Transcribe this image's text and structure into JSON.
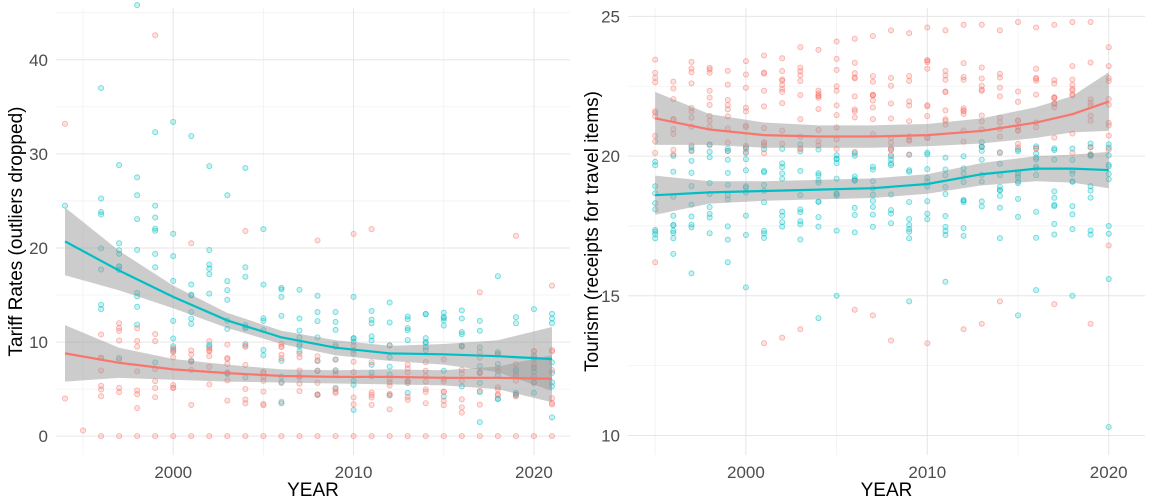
{
  "colors": {
    "group_a": "#F8766D",
    "group_b": "#00BFC4",
    "band": "#999999"
  },
  "chart_data": [
    {
      "type": "scatter",
      "xlabel": "YEAR",
      "ylabel": "Tariff Rates (outliers dropped)",
      "xlim": [
        1993.5,
        2022
      ],
      "ylim": [
        -2,
        45.5
      ],
      "xticks": [
        2000,
        2010,
        2020
      ],
      "yticks": [
        0,
        10,
        20,
        30,
        40
      ],
      "grid": true,
      "legend": "none",
      "smooth": [
        {
          "color": "group_b",
          "x": [
            1994,
            1997,
            2000,
            2003,
            2006,
            2009,
            2012,
            2015,
            2018,
            2021
          ],
          "y": [
            20.7,
            17.6,
            14.8,
            12.3,
            10.5,
            9.4,
            8.8,
            8.7,
            8.5,
            8.2
          ],
          "lower": [
            17.1,
            15.5,
            13.6,
            11.5,
            9.8,
            8.6,
            8.0,
            7.6,
            6.8,
            4.8
          ],
          "upper": [
            24.3,
            19.7,
            16.0,
            13.1,
            11.2,
            10.2,
            9.6,
            9.8,
            10.2,
            11.6
          ]
        },
        {
          "color": "group_a",
          "x": [
            1994,
            1997,
            2000,
            2003,
            2006,
            2009,
            2012,
            2015,
            2018,
            2021
          ],
          "y": [
            8.8,
            7.8,
            7.1,
            6.7,
            6.4,
            6.3,
            6.3,
            6.2,
            6.2,
            6.1
          ],
          "lower": [
            5.8,
            6.2,
            6.0,
            5.8,
            5.7,
            5.6,
            5.5,
            5.4,
            5.0,
            3.6
          ],
          "upper": [
            11.8,
            9.4,
            8.2,
            7.6,
            7.1,
            7.0,
            7.1,
            7.0,
            7.4,
            8.6
          ]
        }
      ],
      "points": [
        {
          "color": "group_a",
          "x": 1994,
          "y": 33.2
        },
        {
          "color": "group_b",
          "x": 1994,
          "y": 24.5
        },
        {
          "color": "group_b",
          "x": 1996,
          "y": 37.0
        },
        {
          "color": "group_b",
          "x": 1997,
          "y": 28.8
        },
        {
          "color": "group_b",
          "x": 1998,
          "y": 45.8
        },
        {
          "color": "group_a",
          "x": 1999,
          "y": 42.6
        },
        {
          "color": "group_b",
          "x": 1999,
          "y": 32.3
        },
        {
          "color": "group_b",
          "x": 2000,
          "y": 33.4
        },
        {
          "color": "group_b",
          "x": 2001,
          "y": 31.9
        },
        {
          "color": "group_b",
          "x": 2002,
          "y": 28.7
        },
        {
          "color": "group_b",
          "x": 2003,
          "y": 25.6
        },
        {
          "color": "group_b",
          "x": 2004,
          "y": 28.5
        },
        {
          "color": "group_b",
          "x": 1998,
          "y": 27.5
        },
        {
          "color": "group_b",
          "x": 1999,
          "y": 24.5
        },
        {
          "color": "group_a",
          "x": 1994,
          "y": 4.0
        },
        {
          "color": "group_a",
          "x": 1995,
          "y": 0.6
        },
        {
          "color": "group_a",
          "x": 1996,
          "y": 10.8
        },
        {
          "color": "group_b",
          "x": 1996,
          "y": 13.5
        },
        {
          "color": "group_b",
          "x": 1997,
          "y": 20.5
        },
        {
          "color": "group_a",
          "x": 1997,
          "y": 12.0
        },
        {
          "color": "group_b",
          "x": 1998,
          "y": 19.8
        },
        {
          "color": "group_a",
          "x": 1998,
          "y": 3.0
        },
        {
          "color": "group_b",
          "x": 2000,
          "y": 16.5
        },
        {
          "color": "group_a",
          "x": 2000,
          "y": 9.0
        },
        {
          "color": "group_b",
          "x": 2001,
          "y": 13.2
        },
        {
          "color": "group_a",
          "x": 2001,
          "y": 20.5
        },
        {
          "color": "group_b",
          "x": 2002,
          "y": 17.8
        },
        {
          "color": "group_a",
          "x": 2002,
          "y": 5.5
        },
        {
          "color": "group_b",
          "x": 2003,
          "y": 14.5
        },
        {
          "color": "group_a",
          "x": 2003,
          "y": 8.2
        },
        {
          "color": "group_b",
          "x": 2004,
          "y": 11.8
        },
        {
          "color": "group_a",
          "x": 2004,
          "y": 21.8
        },
        {
          "color": "group_b",
          "x": 2005,
          "y": 22.0
        },
        {
          "color": "group_a",
          "x": 2005,
          "y": 6.3
        },
        {
          "color": "group_b",
          "x": 2006,
          "y": 14.8
        },
        {
          "color": "group_a",
          "x": 2006,
          "y": 9.5
        },
        {
          "color": "group_b",
          "x": 2007,
          "y": 12.5
        },
        {
          "color": "group_a",
          "x": 2007,
          "y": 4.8
        },
        {
          "color": "group_b",
          "x": 2008,
          "y": 10.5
        },
        {
          "color": "group_a",
          "x": 2008,
          "y": 20.8
        },
        {
          "color": "group_b",
          "x": 2009,
          "y": 13.2
        },
        {
          "color": "group_a",
          "x": 2009,
          "y": 5.0
        },
        {
          "color": "group_b",
          "x": 2010,
          "y": 14.8
        },
        {
          "color": "group_a",
          "x": 2010,
          "y": 21.5
        },
        {
          "color": "group_b",
          "x": 2011,
          "y": 12.0
        },
        {
          "color": "group_a",
          "x": 2011,
          "y": 22.0
        },
        {
          "color": "group_b",
          "x": 2012,
          "y": 14.2
        },
        {
          "color": "group_a",
          "x": 2012,
          "y": 4.5
        },
        {
          "color": "group_b",
          "x": 2013,
          "y": 11.5
        },
        {
          "color": "group_a",
          "x": 2013,
          "y": 7.2
        },
        {
          "color": "group_b",
          "x": 2014,
          "y": 13.0
        },
        {
          "color": "group_a",
          "x": 2014,
          "y": 3.5
        },
        {
          "color": "group_b",
          "x": 2015,
          "y": 12.3
        },
        {
          "color": "group_a",
          "x": 2015,
          "y": 5.8
        },
        {
          "color": "group_b",
          "x": 2016,
          "y": 12.5
        },
        {
          "color": "group_a",
          "x": 2016,
          "y": 2.5
        },
        {
          "color": "group_b",
          "x": 2017,
          "y": 11.2
        },
        {
          "color": "group_a",
          "x": 2017,
          "y": 15.3
        },
        {
          "color": "group_b",
          "x": 2018,
          "y": 17.0
        },
        {
          "color": "group_a",
          "x": 2018,
          "y": 5.2
        },
        {
          "color": "group_b",
          "x": 2019,
          "y": 12.0
        },
        {
          "color": "group_a",
          "x": 2019,
          "y": 21.3
        },
        {
          "color": "group_b",
          "x": 2020,
          "y": 13.5
        },
        {
          "color": "group_a",
          "x": 2020,
          "y": 9.0
        },
        {
          "color": "group_b",
          "x": 2021,
          "y": 13.0
        },
        {
          "color": "group_a",
          "x": 2021,
          "y": 16.0
        },
        {
          "color": "group_b",
          "x": 2021,
          "y": 2.0
        },
        {
          "color": "group_b",
          "x": 2017,
          "y": 1.5
        },
        {
          "color": "group_b",
          "x": 2010,
          "y": 2.8
        },
        {
          "color": "group_b",
          "x": 2006,
          "y": 3.5
        }
      ],
      "zero_points_years": [
        1996,
        1997,
        1998,
        1999,
        2000,
        2001,
        2002,
        2003,
        2004,
        2005,
        2006,
        2007,
        2008,
        2009,
        2010,
        2011,
        2012,
        2013,
        2014,
        2015,
        2016,
        2017,
        2018,
        2019,
        2020,
        2021
      ]
    },
    {
      "type": "scatter",
      "xlabel": "YEAR",
      "ylabel": "Tourism (receipts for travel items)",
      "xlim": [
        1993.5,
        2022
      ],
      "ylim": [
        9.3,
        25.3
      ],
      "xticks": [
        2000,
        2010,
        2020
      ],
      "yticks": [
        10,
        15,
        20,
        25
      ],
      "grid": true,
      "legend": "none",
      "smooth": [
        {
          "color": "group_a",
          "x": [
            1995,
            1998,
            2001,
            2004,
            2007,
            2010,
            2013,
            2016,
            2018,
            2020
          ],
          "y": [
            21.35,
            20.95,
            20.75,
            20.7,
            20.7,
            20.75,
            20.9,
            21.2,
            21.5,
            21.95
          ],
          "lower": [
            20.4,
            20.4,
            20.3,
            20.3,
            20.3,
            20.35,
            20.45,
            20.65,
            20.85,
            20.9
          ],
          "upper": [
            22.3,
            21.5,
            21.2,
            21.1,
            21.1,
            21.15,
            21.35,
            21.75,
            22.15,
            23.0
          ]
        },
        {
          "color": "group_b",
          "x": [
            1995,
            1998,
            2001,
            2004,
            2007,
            2010,
            2013,
            2016,
            2018,
            2020
          ],
          "y": [
            18.6,
            18.7,
            18.75,
            18.8,
            18.85,
            19.0,
            19.35,
            19.55,
            19.55,
            19.5
          ],
          "lower": [
            17.9,
            18.3,
            18.4,
            18.45,
            18.5,
            18.65,
            18.95,
            19.1,
            19.05,
            18.85
          ],
          "upper": [
            19.3,
            19.1,
            19.1,
            19.15,
            19.2,
            19.35,
            19.75,
            20.0,
            20.05,
            20.15
          ]
        }
      ],
      "points": [
        {
          "color": "group_a",
          "x": 1995,
          "y": 22.8
        },
        {
          "color": "group_a",
          "x": 1995,
          "y": 16.2
        },
        {
          "color": "group_b",
          "x": 1995,
          "y": 17.2
        },
        {
          "color": "group_b",
          "x": 1996,
          "y": 16.5
        },
        {
          "color": "group_a",
          "x": 1997,
          "y": 23.0
        },
        {
          "color": "group_b",
          "x": 1997,
          "y": 15.8
        },
        {
          "color": "group_a",
          "x": 1998,
          "y": 23.1
        },
        {
          "color": "group_b",
          "x": 1999,
          "y": 16.2
        },
        {
          "color": "group_a",
          "x": 2000,
          "y": 23.4
        },
        {
          "color": "group_b",
          "x": 2000,
          "y": 15.3
        },
        {
          "color": "group_a",
          "x": 2001,
          "y": 23.6
        },
        {
          "color": "group_a",
          "x": 2001,
          "y": 13.3
        },
        {
          "color": "group_a",
          "x": 2002,
          "y": 23.5
        },
        {
          "color": "group_a",
          "x": 2002,
          "y": 13.5
        },
        {
          "color": "group_a",
          "x": 2003,
          "y": 23.9
        },
        {
          "color": "group_a",
          "x": 2003,
          "y": 13.8
        },
        {
          "color": "group_a",
          "x": 2004,
          "y": 23.8
        },
        {
          "color": "group_b",
          "x": 2004,
          "y": 14.2
        },
        {
          "color": "group_a",
          "x": 2005,
          "y": 24.1
        },
        {
          "color": "group_b",
          "x": 2005,
          "y": 15.0
        },
        {
          "color": "group_a",
          "x": 2006,
          "y": 24.2
        },
        {
          "color": "group_a",
          "x": 2006,
          "y": 14.5
        },
        {
          "color": "group_a",
          "x": 2007,
          "y": 24.3
        },
        {
          "color": "group_a",
          "x": 2007,
          "y": 14.3
        },
        {
          "color": "group_a",
          "x": 2008,
          "y": 24.5
        },
        {
          "color": "group_a",
          "x": 2008,
          "y": 13.4
        },
        {
          "color": "group_a",
          "x": 2009,
          "y": 24.4
        },
        {
          "color": "group_b",
          "x": 2009,
          "y": 14.8
        },
        {
          "color": "group_a",
          "x": 2010,
          "y": 24.6
        },
        {
          "color": "group_a",
          "x": 2010,
          "y": 13.3
        },
        {
          "color": "group_a",
          "x": 2011,
          "y": 24.5
        },
        {
          "color": "group_b",
          "x": 2011,
          "y": 15.5
        },
        {
          "color": "group_a",
          "x": 2012,
          "y": 24.7
        },
        {
          "color": "group_a",
          "x": 2012,
          "y": 13.8
        },
        {
          "color": "group_a",
          "x": 2013,
          "y": 24.7
        },
        {
          "color": "group_a",
          "x": 2013,
          "y": 14.0
        },
        {
          "color": "group_a",
          "x": 2014,
          "y": 24.5
        },
        {
          "color": "group_a",
          "x": 2014,
          "y": 14.8
        },
        {
          "color": "group_a",
          "x": 2015,
          "y": 24.8
        },
        {
          "color": "group_b",
          "x": 2015,
          "y": 14.3
        },
        {
          "color": "group_a",
          "x": 2016,
          "y": 24.6
        },
        {
          "color": "group_b",
          "x": 2016,
          "y": 15.2
        },
        {
          "color": "group_a",
          "x": 2017,
          "y": 24.7
        },
        {
          "color": "group_a",
          "x": 2017,
          "y": 14.7
        },
        {
          "color": "group_a",
          "x": 2018,
          "y": 24.8
        },
        {
          "color": "group_b",
          "x": 2018,
          "y": 15.0
        },
        {
          "color": "group_a",
          "x": 2019,
          "y": 24.8
        },
        {
          "color": "group_a",
          "x": 2019,
          "y": 14.0
        },
        {
          "color": "group_a",
          "x": 2020,
          "y": 23.9
        },
        {
          "color": "group_b",
          "x": 2020,
          "y": 10.3
        },
        {
          "color": "group_b",
          "x": 2020,
          "y": 15.6
        },
        {
          "color": "group_a",
          "x": 2020,
          "y": 16.8
        }
      ],
      "cloud": {
        "years": [
          1995,
          1996,
          1997,
          1998,
          1999,
          2000,
          2001,
          2002,
          2003,
          2004,
          2005,
          2006,
          2007,
          2008,
          2009,
          2010,
          2011,
          2012,
          2013,
          2014,
          2015,
          2016,
          2017,
          2018,
          2019,
          2020
        ],
        "group_a_range": [
          20.0,
          23.5
        ],
        "group_b_range": [
          17.0,
          20.5
        ]
      }
    }
  ]
}
